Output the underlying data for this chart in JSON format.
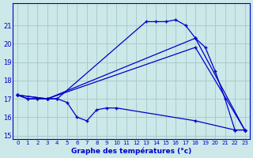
{
  "title": "Graphe des températures (°c)",
  "bg_color": "#cce8e8",
  "grid_color": "#aacccc",
  "line_color": "#0000cc",
  "xlim": [
    -0.5,
    23.5
  ],
  "ylim": [
    14.8,
    22.2
  ],
  "yticks": [
    15,
    16,
    17,
    18,
    19,
    20,
    21
  ],
  "xticks": [
    0,
    1,
    2,
    3,
    4,
    5,
    6,
    7,
    8,
    9,
    10,
    11,
    12,
    13,
    14,
    15,
    16,
    17,
    18,
    19,
    20,
    21,
    22,
    23
  ],
  "series": [
    {
      "x": [
        0,
        1,
        2,
        3,
        4,
        13,
        14,
        15,
        16,
        17,
        18,
        19,
        20,
        21,
        22,
        23
      ],
      "y": [
        17.2,
        17.0,
        17.0,
        17.0,
        17.0,
        21.2,
        21.2,
        21.2,
        21.3,
        21.0,
        20.3,
        19.8,
        18.5,
        17.0,
        15.3,
        15.3
      ]
    },
    {
      "x": [
        0,
        1,
        2,
        3,
        4,
        5,
        6,
        7,
        8,
        9,
        10,
        18,
        22,
        23
      ],
      "y": [
        17.2,
        17.0,
        17.0,
        17.0,
        17.0,
        16.8,
        16.0,
        15.8,
        16.4,
        16.5,
        16.5,
        15.8,
        15.3,
        15.3
      ]
    },
    {
      "x": [
        0,
        3,
        18,
        23
      ],
      "y": [
        17.2,
        17.0,
        20.3,
        15.3
      ]
    },
    {
      "x": [
        0,
        3,
        18,
        23
      ],
      "y": [
        17.2,
        17.0,
        19.8,
        15.3
      ]
    }
  ]
}
